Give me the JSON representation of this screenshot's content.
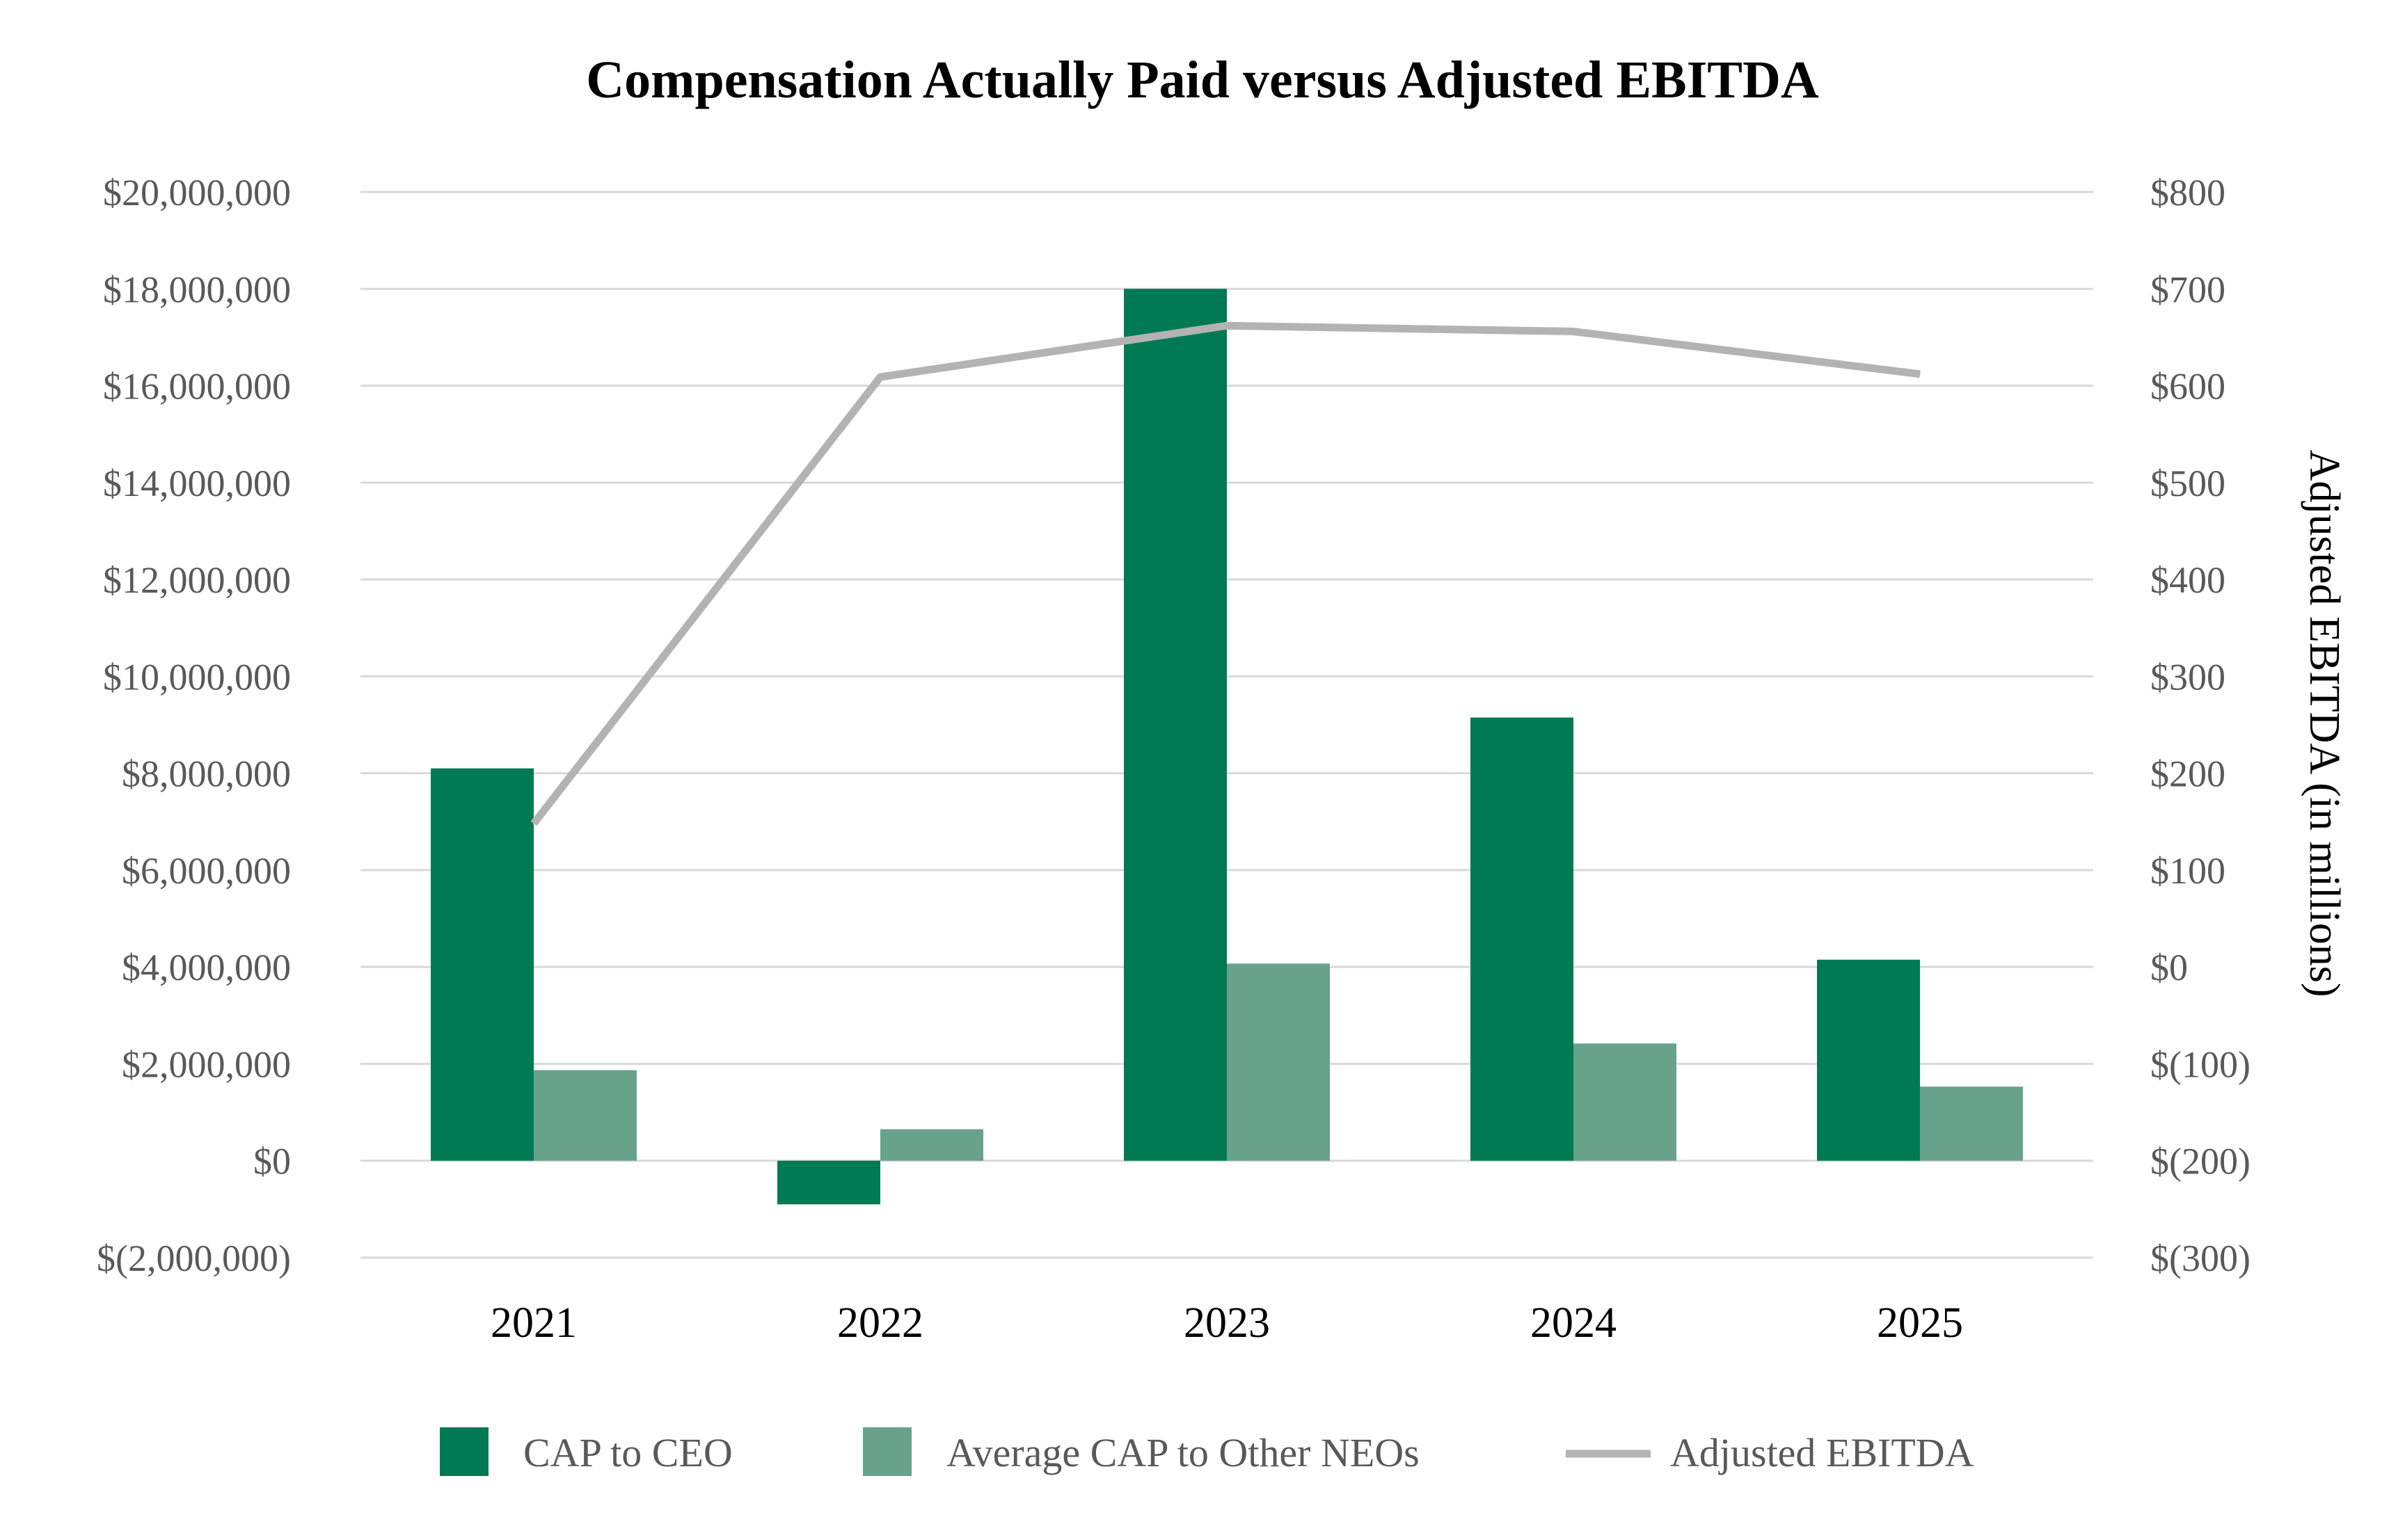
{
  "chart_data": {
    "type": "bar",
    "title": "Compensation Actually Paid versus Adjusted EBITDA",
    "categories": [
      "2021",
      "2022",
      "2023",
      "2024",
      "2025"
    ],
    "series": [
      {
        "name": "CAP to CEO",
        "type": "bar",
        "axis": "left",
        "color": "#007a53",
        "values": [
          8100000,
          -900000,
          18000000,
          9150000,
          4150000
        ]
      },
      {
        "name": "Average CAP to Other NEOs",
        "type": "bar",
        "axis": "left",
        "color": "#68a28b",
        "values": [
          1870000,
          650000,
          4070000,
          2420000,
          1530000
        ]
      },
      {
        "name": "Adjusted EBITDA",
        "type": "line",
        "axis": "right",
        "color": "#b3b3b3",
        "values": [
          148,
          609,
          662,
          656,
          612
        ]
      }
    ],
    "y_left": {
      "ylim": [
        -2000000,
        20000000
      ],
      "ticks": [
        -2000000,
        0,
        2000000,
        4000000,
        6000000,
        8000000,
        10000000,
        12000000,
        14000000,
        16000000,
        18000000,
        20000000
      ],
      "tick_labels": [
        "$(2,000,000)",
        "$0",
        "$2,000,000",
        "$4,000,000",
        "$6,000,000",
        "$8,000,000",
        "$10,000,000",
        "$12,000,000",
        "$14,000,000",
        "$16,000,000",
        "$18,000,000",
        "$20,000,000"
      ],
      "label": ""
    },
    "y_right": {
      "ylim": [
        -300,
        800
      ],
      "ticks": [
        -300,
        -200,
        -100,
        0,
        100,
        200,
        300,
        400,
        500,
        600,
        700,
        800
      ],
      "tick_labels": [
        "$(300)",
        "$(200)",
        "$(100)",
        "$0",
        "$100",
        "$200",
        "$300",
        "$400",
        "$500",
        "$600",
        "$700",
        "$800"
      ],
      "label": "Adjusted EBITDA (in millions)"
    },
    "xlabel": "",
    "grid": true,
    "legend_position": "bottom"
  }
}
